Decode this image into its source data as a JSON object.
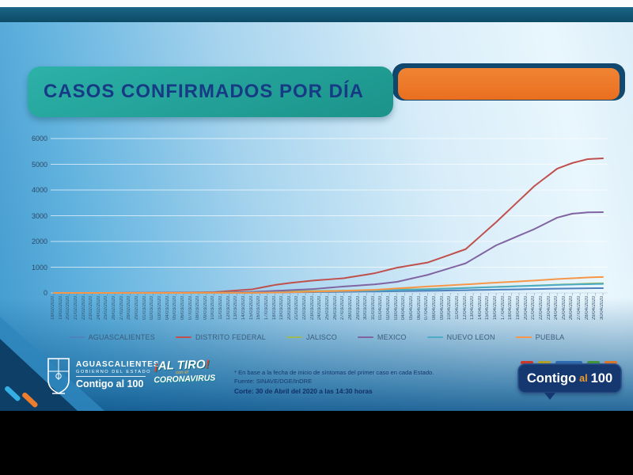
{
  "header": {
    "title": "CASOS CONFIRMADOS POR DÍA"
  },
  "chart_data": {
    "type": "line",
    "title": "CASOS CONFIRMADOS POR DÍA",
    "xlabel": "",
    "ylabel": "",
    "ylim": [
      0,
      6000
    ],
    "yticks": [
      0,
      1000,
      2000,
      3000,
      4000,
      5000,
      6000
    ],
    "grid": true,
    "legend_position": "bottom",
    "x": [
      "18/02/2020",
      "19/02/2020",
      "20/02/2020",
      "21/02/2020",
      "22/02/2020",
      "23/02/2020",
      "24/02/2020",
      "25/02/2020",
      "26/02/2020",
      "27/02/2020",
      "28/02/2020",
      "29/02/2020",
      "01/03/2020",
      "02/03/2020",
      "03/03/2020",
      "04/03/2020",
      "05/03/2020",
      "06/03/2020",
      "07/03/2020",
      "08/03/2020",
      "09/03/2020",
      "10/03/2020",
      "11/03/2020",
      "12/03/2020",
      "13/03/2020",
      "14/03/2020",
      "15/03/2020",
      "16/03/2020",
      "17/03/2020",
      "18/03/2020",
      "19/03/2020",
      "20/03/2020",
      "21/03/2020",
      "22/03/2020",
      "23/03/2020",
      "24/03/2020",
      "25/03/2020",
      "26/03/2020",
      "27/03/2020",
      "28/03/2020",
      "29/03/2020",
      "30/03/2020",
      "31/03/2020",
      "01/04/2020",
      "02/04/2020",
      "03/04/2020",
      "04/04/2020",
      "05/04/2020",
      "06/04/2020",
      "07/04/2020",
      "08/04/2020",
      "09/04/2020",
      "10/04/2020",
      "11/04/2020",
      "12/04/2020",
      "13/04/2020",
      "14/04/2020",
      "15/04/2020",
      "16/04/2020",
      "17/04/2020",
      "18/04/2020",
      "19/04/2020",
      "20/04/2020",
      "21/04/2020",
      "22/04/2020",
      "23/04/2020",
      "24/04/2020",
      "25/04/2020",
      "26/04/2020",
      "27/04/2020",
      "28/04/2020",
      "29/04/2020",
      "30/04/2020"
    ],
    "series": [
      {
        "name": "AGUASCALIENTES",
        "color": "#4F81BD",
        "values": [
          0,
          0,
          0,
          0,
          0,
          0,
          0,
          0,
          0,
          0,
          0,
          0,
          0,
          0,
          0,
          0,
          0,
          0,
          1,
          1,
          2,
          3,
          4,
          5,
          6,
          7,
          8,
          11,
          14,
          16,
          19,
          22,
          25,
          27,
          30,
          33,
          36,
          39,
          43,
          46,
          49,
          52,
          55,
          59,
          62,
          66,
          69,
          73,
          76,
          80,
          85,
          90,
          95,
          100,
          105,
          110,
          115,
          120,
          125,
          130,
          135,
          140,
          145,
          150,
          155,
          160,
          165,
          169,
          172,
          176,
          180,
          183,
          185
        ]
      },
      {
        "name": "DISTRITO FEDERAL",
        "color": "#C0504D",
        "values": [
          0,
          0,
          0,
          0,
          0,
          0,
          1,
          1,
          1,
          2,
          2,
          2,
          4,
          6,
          8,
          10,
          13,
          16,
          19,
          22,
          26,
          30,
          52,
          74,
          96,
          118,
          140,
          197,
          253,
          310,
          350,
          390,
          420,
          450,
          480,
          503,
          525,
          548,
          570,
          618,
          665,
          713,
          760,
          833,
          907,
          980,
          1030,
          1080,
          1130,
          1180,
          1284,
          1388,
          1492,
          1596,
          1700,
          1963,
          2225,
          2488,
          2750,
          3030,
          3310,
          3590,
          3870,
          4150,
          4377,
          4603,
          4830,
          4940,
          5050,
          5125,
          5200,
          5215,
          5230
        ]
      },
      {
        "name": "JALISCO",
        "color": "#9BBB59",
        "values": [
          0,
          0,
          0,
          0,
          0,
          0,
          0,
          0,
          0,
          0,
          0,
          0,
          0,
          0,
          1,
          2,
          3,
          5,
          7,
          9,
          12,
          15,
          19,
          23,
          27,
          31,
          35,
          40,
          45,
          50,
          55,
          60,
          64,
          69,
          73,
          77,
          81,
          86,
          90,
          95,
          100,
          105,
          110,
          116,
          121,
          127,
          133,
          139,
          144,
          150,
          159,
          168,
          177,
          186,
          195,
          205,
          215,
          225,
          235,
          245,
          255,
          265,
          275,
          285,
          297,
          308,
          320,
          330,
          340,
          350,
          360,
          368,
          375
        ]
      },
      {
        "name": "MEXICO",
        "color": "#8064A2",
        "values": [
          0,
          0,
          0,
          0,
          0,
          0,
          0,
          0,
          1,
          1,
          2,
          2,
          3,
          3,
          4,
          5,
          6,
          6,
          7,
          8,
          9,
          10,
          16,
          22,
          28,
          34,
          40,
          53,
          67,
          80,
          94,
          108,
          122,
          136,
          150,
          175,
          200,
          225,
          250,
          270,
          290,
          310,
          330,
          363,
          397,
          430,
          498,
          565,
          633,
          700,
          790,
          880,
          970,
          1060,
          1150,
          1325,
          1500,
          1675,
          1850,
          1976,
          2102,
          2228,
          2354,
          2480,
          2628,
          2777,
          2925,
          3003,
          3080,
          3105,
          3130,
          3135,
          3140
        ]
      },
      {
        "name": "NUEVO LEON",
        "color": "#4BACC6",
        "values": [
          0,
          0,
          0,
          0,
          0,
          0,
          0,
          0,
          0,
          0,
          0,
          0,
          0,
          0,
          0,
          0,
          0,
          0,
          1,
          2,
          3,
          4,
          5,
          6,
          7,
          9,
          10,
          14,
          19,
          23,
          28,
          32,
          36,
          41,
          45,
          51,
          56,
          62,
          68,
          73,
          79,
          84,
          90,
          97,
          104,
          111,
          119,
          126,
          133,
          140,
          150,
          160,
          170,
          180,
          190,
          200,
          210,
          220,
          230,
          240,
          250,
          260,
          270,
          280,
          290,
          300,
          310,
          318,
          325,
          333,
          340,
          345,
          350
        ]
      },
      {
        "name": "PUEBLA",
        "color": "#F79646",
        "values": [
          0,
          0,
          0,
          0,
          0,
          0,
          0,
          0,
          0,
          0,
          0,
          0,
          0,
          0,
          0,
          0,
          1,
          1,
          2,
          2,
          3,
          3,
          4,
          4,
          4,
          5,
          5,
          9,
          13,
          17,
          21,
          25,
          33,
          41,
          49,
          57,
          64,
          72,
          80,
          90,
          100,
          110,
          120,
          139,
          157,
          176,
          194,
          213,
          231,
          250,
          266,
          282,
          298,
          314,
          330,
          348,
          365,
          383,
          400,
          416,
          432,
          448,
          464,
          480,
          500,
          520,
          540,
          555,
          570,
          585,
          600,
          610,
          620
        ]
      }
    ]
  },
  "footer": {
    "gov_logo": {
      "name": "AGUASCALIENTES",
      "subtitle": "GOBIERNO DEL ESTADO",
      "slogan": "Contigo al 100"
    },
    "campaign_logo": {
      "excl_open": "¡",
      "word": "AL TIRO",
      "excl_close": "!",
      "middle": "con el",
      "bottom": "CORONAVIRUS"
    },
    "notes": {
      "line1": "* En base a la fecha de inicio de síntomas del primer caso en cada Estado.",
      "line2": "Fuente: SINAVE/DGE/InDRE",
      "line3": "Corte: 30 de Abril del 2020 a las 14:30 horas"
    },
    "bubble_logo": {
      "word1": "Contigo",
      "word2": "al",
      "word3": "100",
      "dash_colors": [
        "#cf3a2a",
        "#b3a428",
        "#2e6db4",
        "#44973c",
        "#e0782a"
      ]
    }
  },
  "colors": {
    "teal_card": "#21a69c",
    "orange_bar": "#ee7c2a",
    "navy": "#11486f",
    "title_text": "#173a85",
    "gridline": "#ffffff",
    "axis_label": "#35546f"
  }
}
